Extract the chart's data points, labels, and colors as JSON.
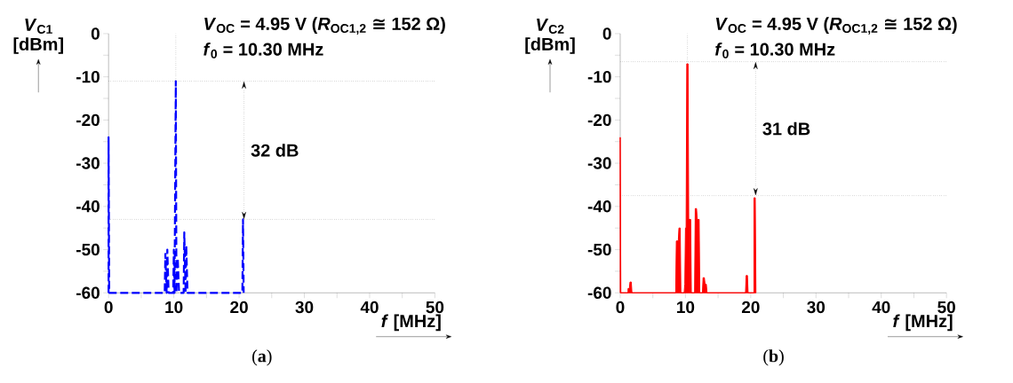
{
  "chart_data": [
    {
      "type": "line",
      "title": "*V*$_{OC}$ = 4.95 V (*R*$_{OC1,2}$ ≅ 152 Ω)",
      "subtitle": "*f*$_{0}$ = 10.30 MHz",
      "xlabel": "*f* [MHz]",
      "ylabel": "*V*$_{C1}$ [dBm]",
      "x": [
        0,
        0,
        0.1,
        8.6,
        8.7,
        8.9,
        9.0,
        9.2,
        9.9,
        10.0,
        10.1,
        10.3,
        10.4,
        10.6,
        10.8,
        11.5,
        11.6,
        11.8,
        11.9,
        12.1,
        20.5,
        20.6,
        20.7
      ],
      "values": [
        -60,
        -24,
        -60,
        -60,
        -51,
        -60,
        -50,
        -60,
        -60,
        -50,
        -60,
        -11,
        -60,
        -52,
        -60,
        -60,
        -46,
        -60,
        -49,
        -60,
        -60,
        -43,
        -60
      ],
      "color": "#0000ff",
      "line_style": "dashed",
      "xlim": [
        0,
        50
      ],
      "ylim": [
        -60,
        0
      ],
      "xticks": [
        0,
        10,
        20,
        30,
        40,
        50
      ],
      "yticks": [
        -60,
        -50,
        -40,
        -30,
        -20,
        -10,
        0
      ],
      "ref_lines": [
        {
          "axis": "x",
          "value": 10.3,
          "line_style": "dotted"
        },
        {
          "axis": "y",
          "value": -11,
          "line_style": "dotted"
        },
        {
          "axis": "y",
          "value": -43,
          "line_style": "dotted"
        }
      ],
      "annotations": [
        "32 dB",
        "(**a**)"
      ]
    },
    {
      "type": "area",
      "title": "*V*$_{OC}$ = 4.95 V (*R*$_{OC1,2}$ ≅ 152 Ω)",
      "subtitle": "*f*$_{0}$ = 10.30 MHz",
      "xlabel": "*f* [MHz]",
      "ylabel": "*V*$_{C2}$ [dBm]",
      "x": [
        0,
        0,
        0.1,
        1.2,
        1.2,
        1.4,
        1.5,
        1.7,
        1.8,
        8.5,
        8.6,
        8.9,
        9.0,
        9.2,
        9.3,
        9.8,
        9.9,
        10.0,
        10.1,
        10.2,
        10.4,
        10.5,
        10.8,
        10.9,
        11.4,
        11.5,
        11.7,
        11.8,
        12.1,
        12.2,
        12.6,
        12.7,
        12.9,
        13.0,
        13.2,
        13.3,
        19.2,
        19.3,
        19.5,
        19.6,
        20.5,
        20.5,
        20.7,
        20.8
      ],
      "values": [
        -60,
        -24,
        -60,
        -60,
        -59,
        -59,
        -57.5,
        -57.5,
        -60,
        -60,
        -48,
        -48,
        -45,
        -45,
        -60,
        -60,
        -58,
        -45,
        -45,
        -7,
        -7,
        -43,
        -43,
        -60,
        -60,
        -40.5,
        -40.5,
        -43,
        -43,
        -60,
        -60,
        -56.5,
        -56.5,
        -58,
        -58,
        -60,
        -60,
        -56,
        -56,
        -60,
        -60,
        -38,
        -38,
        -60
      ],
      "color": "#ff0000",
      "line_style": "solid",
      "xlim": [
        0,
        50
      ],
      "ylim": [
        -60,
        0
      ],
      "xticks": [
        0,
        10,
        20,
        30,
        40,
        50
      ],
      "yticks": [
        -60,
        -50,
        -40,
        -30,
        -20,
        -10,
        0
      ],
      "ref_lines": [
        {
          "axis": "x",
          "value": 10.3,
          "line_style": "dotted"
        },
        {
          "axis": "y",
          "value": -6.5,
          "line_style": "dotted"
        },
        {
          "axis": "y",
          "value": -37.5,
          "line_style": "dotted"
        }
      ],
      "annotations": [
        "31 dB",
        "(**b**)"
      ]
    }
  ]
}
